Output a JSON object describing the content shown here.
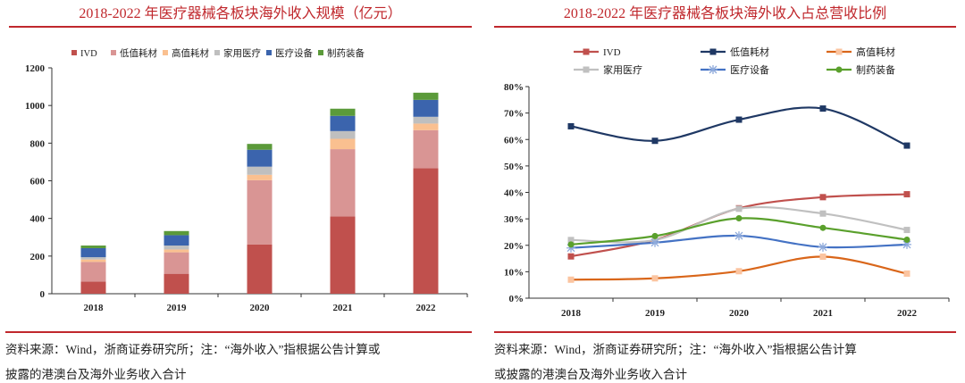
{
  "left": {
    "title": "2018-2022 年医疗器械各板块海外收入规模（亿元）",
    "note_line1": "资料来源：Wind，浙商证券研究所；注：“海外收入”指根据公告计算或",
    "note_line2": "披露的港澳台及海外业务收入合计"
  },
  "right": {
    "title": "2018-2022 年医疗器械各板块海外收入占总营收比例",
    "note_line1": "资料来源：Wind，浙商证券研究所；注：“海外收入”指根据公告计算",
    "note_line2": "或披露的港澳台及海外业务收入合计"
  },
  "chart_data": [
    {
      "type": "bar",
      "stacked": true,
      "categories": [
        "2018",
        "2019",
        "2020",
        "2021",
        "2022"
      ],
      "ylim": [
        0,
        1200
      ],
      "yticks": [
        "0",
        "200",
        "400",
        "600",
        "800",
        "1000",
        "1200"
      ],
      "legend": "top",
      "series": [
        {
          "name": "IVD",
          "color": "#c0504d",
          "values": [
            65,
            106,
            261,
            411,
            667
          ]
        },
        {
          "name": "低值耗材",
          "color": "#d99594",
          "values": [
            104,
            114,
            342,
            357,
            202
          ]
        },
        {
          "name": "高值耗材",
          "color": "#fac090",
          "values": [
            13,
            15,
            29,
            55,
            35
          ]
        },
        {
          "name": "家用医疗",
          "color": "#bfbfbf",
          "values": [
            12,
            21,
            43,
            41,
            36
          ]
        },
        {
          "name": "医疗设备",
          "color": "#3b64ad",
          "values": [
            48,
            55,
            90,
            81,
            90
          ]
        },
        {
          "name": "制药装备",
          "color": "#5b9a3a",
          "values": [
            14,
            22,
            31,
            38,
            38
          ]
        }
      ]
    },
    {
      "type": "line",
      "smooth": true,
      "categories": [
        "2018",
        "2019",
        "2020",
        "2021",
        "2022"
      ],
      "ylim": [
        0,
        80
      ],
      "yticks": [
        "0%",
        "10%",
        "20%",
        "30%",
        "40%",
        "50%",
        "60%",
        "70%",
        "80%"
      ],
      "legend": "top",
      "series": [
        {
          "name": "IVD",
          "color": "#c0504d",
          "marker": "square",
          "values": [
            15.8,
            22,
            34,
            38.2,
            39.3
          ]
        },
        {
          "name": "低值耗材",
          "color": "#1f3864",
          "marker": "square",
          "values": [
            65,
            59.5,
            67.5,
            71.7,
            57.7
          ]
        },
        {
          "name": "高值耗材",
          "color": "#d9661a",
          "marker": "square-light",
          "values": [
            7,
            7.5,
            10.2,
            15.7,
            9.3
          ]
        },
        {
          "name": "家用医疗",
          "color": "#c0c0c0",
          "marker": "square",
          "values": [
            22,
            22,
            33.8,
            32,
            25.8
          ]
        },
        {
          "name": "医疗设备",
          "color": "#4472c4",
          "marker": "star",
          "values": [
            19,
            21,
            23.6,
            19.3,
            20.3
          ]
        },
        {
          "name": "制药装备",
          "color": "#5aa02c",
          "marker": "circle",
          "values": [
            20.3,
            23.5,
            30.2,
            26.6,
            22.1
          ]
        }
      ]
    }
  ]
}
